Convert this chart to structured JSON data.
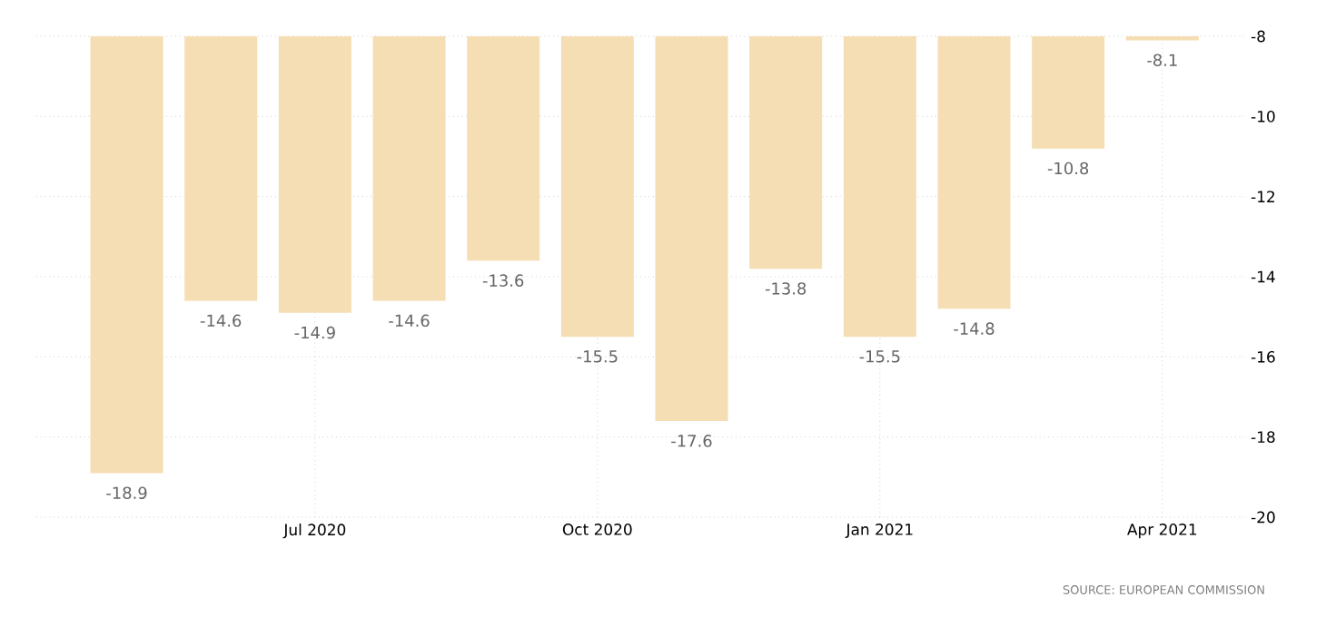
{
  "chart_data": {
    "type": "bar",
    "categories": [
      null,
      null,
      "Jul 2020",
      null,
      null,
      "Oct 2020",
      null,
      null,
      "Jan 2021",
      null,
      null,
      "Apr 2021"
    ],
    "values": [
      -18.9,
      -14.6,
      -14.9,
      -14.6,
      -13.6,
      -15.5,
      -17.6,
      -13.8,
      -15.5,
      -14.8,
      -10.8,
      -8.1
    ],
    "color": "#f5deb3",
    "ylim": [
      -20,
      -8
    ],
    "yticks": [
      -20,
      -18,
      -16,
      -14,
      -12,
      -10,
      -8
    ],
    "grid": true,
    "data_labels": true,
    "annotations": [
      "SOURCE: EUROPEAN COMMISSION"
    ]
  }
}
